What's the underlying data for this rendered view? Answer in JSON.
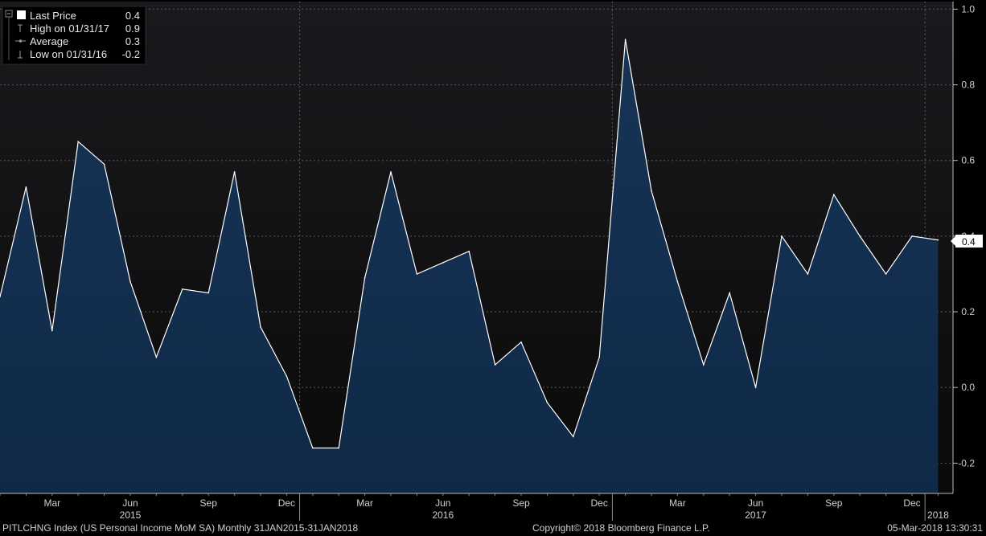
{
  "colors": {
    "background": "#000000",
    "plot_background_top": "#1a1a1e",
    "plot_background_bottom": "#0a0a0a",
    "area_fill_top": "#173456",
    "area_fill_bottom": "#0f2947",
    "line": "#ffffff",
    "grid": "#5a5a5a"
  },
  "legend": {
    "items": [
      {
        "label": "Last Price",
        "value": "0.4",
        "icon": "filled-square-icon"
      },
      {
        "label": "High on 01/31/17",
        "value": "0.9",
        "icon": "high-marker-icon"
      },
      {
        "label": "Average",
        "value": "0.3",
        "icon": "average-marker-icon"
      },
      {
        "label": "Low on 01/31/16",
        "value": "-0.2",
        "icon": "low-marker-icon"
      }
    ]
  },
  "last_value_tag": "0.4",
  "footer": {
    "left": "PITLCHNG Index (US Personal Income MoM SA)  Monthly 31JAN2015-31JAN2018",
    "center": "Copyright© 2018 Bloomberg Finance L.P.",
    "right": "05-Mar-2018 13:30:31"
  },
  "chart_data": {
    "type": "area",
    "title": "",
    "xlabel": "",
    "ylabel": "",
    "x": [
      "Jan 2015",
      "Feb 2015",
      "Mar 2015",
      "Apr 2015",
      "May 2015",
      "Jun 2015",
      "Jul 2015",
      "Aug 2015",
      "Sep 2015",
      "Oct 2015",
      "Nov 2015",
      "Dec 2015",
      "Jan 2016",
      "Feb 2016",
      "Mar 2016",
      "Apr 2016",
      "May 2016",
      "Jun 2016",
      "Jul 2016",
      "Aug 2016",
      "Sep 2016",
      "Oct 2016",
      "Nov 2016",
      "Dec 2016",
      "Jan 2017",
      "Feb 2017",
      "Mar 2017",
      "Apr 2017",
      "May 2017",
      "Jun 2017",
      "Jul 2017",
      "Aug 2017",
      "Sep 2017",
      "Oct 2017",
      "Nov 2017",
      "Dec 2017",
      "Jan 2018"
    ],
    "series": [
      {
        "values": [
          0.24,
          0.53,
          0.15,
          0.65,
          0.59,
          0.28,
          0.08,
          0.26,
          0.25,
          0.57,
          0.16,
          0.03,
          -0.16,
          -0.16,
          0.29,
          0.57,
          0.3,
          0.33,
          0.36,
          0.06,
          0.12,
          -0.04,
          -0.13,
          0.08,
          0.92,
          0.52,
          0.28,
          0.06,
          0.25,
          0.0,
          0.4,
          0.3,
          0.51,
          0.4,
          0.3,
          0.4,
          0.39
        ]
      }
    ],
    "ylim": [
      -0.28,
      1.02
    ],
    "y_ticks": [
      -0.2,
      0.0,
      0.2,
      0.4,
      0.6,
      0.8,
      1.0
    ],
    "y_tick_labels": [
      "-0.2",
      "0.0",
      "0.2",
      "0.4",
      "0.6",
      "0.8",
      "1.0"
    ],
    "x_month_ticks": [
      {
        "index": 2,
        "label": "Mar"
      },
      {
        "index": 5,
        "label": "Jun"
      },
      {
        "index": 8,
        "label": "Sep"
      },
      {
        "index": 11,
        "label": "Dec"
      },
      {
        "index": 14,
        "label": "Mar"
      },
      {
        "index": 17,
        "label": "Jun"
      },
      {
        "index": 20,
        "label": "Sep"
      },
      {
        "index": 23,
        "label": "Dec"
      },
      {
        "index": 26,
        "label": "Mar"
      },
      {
        "index": 29,
        "label": "Jun"
      },
      {
        "index": 32,
        "label": "Sep"
      },
      {
        "index": 35,
        "label": "Dec"
      }
    ],
    "x_year_ticks": [
      {
        "index": 5,
        "label": "2015"
      },
      {
        "index": 17,
        "label": "2016"
      },
      {
        "index": 29,
        "label": "2017"
      },
      {
        "index": 36,
        "label": "2018"
      }
    ],
    "year_boundaries": [
      11.5,
      23.5,
      35.5
    ],
    "grid": true,
    "legend_position": "top-left",
    "y_axis_side": "right"
  }
}
